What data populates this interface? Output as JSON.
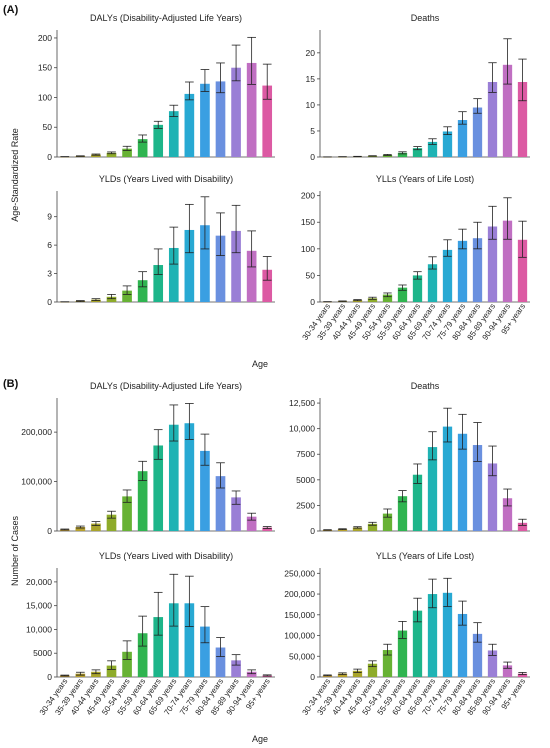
{
  "figure": {
    "panel_a_label": "(A)",
    "panel_b_label": "(B)",
    "panel_a_ylabel": "Age-Standardized Rate",
    "panel_b_ylabel": "Number of Cases",
    "xlabel": "Age"
  },
  "chart_data": [
    {
      "panel": "A",
      "type": "bar",
      "title": "DALYs (Disability-Adjusted Life Years)",
      "yticks": [
        0,
        50,
        100,
        150,
        200
      ],
      "yticklabels": [
        "0",
        "50",
        "100",
        "150",
        "200"
      ],
      "ylim": [
        0,
        210
      ],
      "show_xticklabels": false,
      "values": [
        0.5,
        1.5,
        4,
        7,
        14,
        30,
        54,
        77,
        106,
        123,
        127,
        150,
        158,
        120
      ],
      "lower": [
        0.3,
        1,
        3,
        5.5,
        11,
        25,
        48,
        68,
        96,
        110,
        108,
        128,
        122,
        97
      ],
      "upper": [
        0.7,
        2,
        5,
        8.5,
        18,
        37,
        60,
        87,
        126,
        147,
        158,
        188,
        201,
        156
      ]
    },
    {
      "panel": "A",
      "type": "bar",
      "title": "Deaths",
      "yticks": [
        0,
        5,
        10,
        15,
        20
      ],
      "yticklabels": [
        "0",
        "5",
        "10",
        "15",
        "20"
      ],
      "ylim": [
        0,
        24
      ],
      "show_xticklabels": false,
      "values": [
        0.02,
        0.05,
        0.1,
        0.2,
        0.4,
        0.8,
        1.7,
        2.9,
        4.9,
        7.1,
        9.5,
        14.4,
        17.7,
        14.4
      ],
      "lower": [
        0.01,
        0.03,
        0.07,
        0.15,
        0.3,
        0.6,
        1.4,
        2.4,
        4.3,
        6.3,
        8.4,
        12.4,
        14.0,
        10.8
      ],
      "upper": [
        0.03,
        0.07,
        0.13,
        0.25,
        0.5,
        1.0,
        2.0,
        3.5,
        5.8,
        8.7,
        11.2,
        18.1,
        22.7,
        18.8
      ]
    },
    {
      "panel": "A",
      "type": "bar",
      "title": "YLDs (Years Lived with Disability)",
      "yticks": [
        0,
        3,
        6,
        9
      ],
      "yticklabels": [
        "0",
        "3",
        "6",
        "9"
      ],
      "ylim": [
        0,
        11.5
      ],
      "show_xticklabels": false,
      "values": [
        0.02,
        0.1,
        0.25,
        0.55,
        1.2,
        2.3,
        3.9,
        5.7,
        7.6,
        8.1,
        7.0,
        7.5,
        5.4,
        3.4
      ],
      "lower": [
        0.01,
        0.05,
        0.15,
        0.35,
        0.8,
        1.6,
        2.9,
        4.0,
        5.2,
        5.6,
        4.9,
        5.2,
        3.7,
        2.3
      ],
      "upper": [
        0.03,
        0.15,
        0.35,
        0.8,
        1.7,
        3.2,
        5.6,
        7.9,
        10.3,
        11.1,
        9.4,
        10.2,
        7.5,
        4.8
      ]
    },
    {
      "panel": "A",
      "type": "bar",
      "title": "YLLs (Years of Life Lost)",
      "yticks": [
        0,
        50,
        100,
        150,
        200
      ],
      "yticklabels": [
        "0",
        "50",
        "100",
        "150",
        "200"
      ],
      "ylim": [
        0,
        205
      ],
      "show_xticklabels": true,
      "values": [
        0.5,
        1.5,
        3.5,
        7,
        14,
        27,
        50,
        71,
        98,
        115,
        120,
        142,
        153,
        117
      ],
      "lower": [
        0.3,
        1,
        2.5,
        5,
        10,
        22,
        43,
        62,
        86,
        100,
        100,
        118,
        118,
        84
      ],
      "upper": [
        0.7,
        2,
        4.5,
        9,
        17,
        32,
        57,
        85,
        117,
        137,
        150,
        180,
        196,
        152
      ]
    },
    {
      "panel": "B",
      "type": "bar",
      "title": "DALYs (Disability-Adjusted Life Years)",
      "yticks": [
        0,
        100000,
        200000
      ],
      "yticklabels": [
        "0",
        "100,000",
        "200,000"
      ],
      "ylim": [
        0,
        265000
      ],
      "show_xticklabels": false,
      "values": [
        3000,
        8000,
        15000,
        33000,
        70000,
        121000,
        173000,
        215000,
        218000,
        162000,
        111000,
        68000,
        29000,
        7000
      ],
      "lower": [
        2000,
        6000,
        11000,
        26000,
        58000,
        102000,
        145000,
        182000,
        185000,
        133000,
        87000,
        54000,
        22000,
        5000
      ],
      "upper": [
        4000,
        10000,
        19000,
        40000,
        83000,
        141000,
        205000,
        255000,
        258000,
        196000,
        138000,
        81000,
        36000,
        9000
      ]
    },
    {
      "panel": "B",
      "type": "bar",
      "title": "Deaths",
      "yticks": [
        0,
        2500,
        5000,
        7500,
        10000,
        12500
      ],
      "yticklabels": [
        "0",
        "2500",
        "5000",
        "7500",
        "10,000",
        "12,500"
      ],
      "ylim": [
        0,
        12800
      ],
      "show_xticklabels": false,
      "values": [
        100,
        180,
        350,
        700,
        1700,
        3400,
        5500,
        8200,
        10200,
        9500,
        8400,
        6600,
        3200,
        800
      ],
      "lower": [
        70,
        140,
        280,
        560,
        1350,
        2850,
        4650,
        6950,
        8700,
        8000,
        6800,
        5400,
        2450,
        550
      ],
      "upper": [
        130,
        220,
        420,
        850,
        2150,
        3950,
        6550,
        9700,
        12000,
        11400,
        10600,
        8300,
        4100,
        1150
      ]
    },
    {
      "panel": "B",
      "type": "bar",
      "title": "YLDs (Years Lived with Disability)",
      "yticks": [
        0,
        5000,
        10000,
        15000,
        20000
      ],
      "yticklabels": [
        "0",
        "5000",
        "10,000",
        "15,000",
        "20,000"
      ],
      "ylim": [
        0,
        22500
      ],
      "show_xticklabels": true,
      "values": [
        300,
        700,
        1100,
        2400,
        5300,
        9200,
        12600,
        15500,
        15500,
        10600,
        6200,
        3500,
        1100,
        300
      ],
      "lower": [
        200,
        400,
        700,
        1600,
        3700,
        6500,
        8800,
        10700,
        10600,
        7200,
        4300,
        2500,
        700,
        200
      ],
      "upper": [
        400,
        1000,
        1500,
        3400,
        7600,
        12800,
        17800,
        21600,
        21200,
        14800,
        8300,
        4700,
        1500,
        450
      ]
    },
    {
      "panel": "B",
      "type": "bar",
      "title": "YLLs (Years of Life Lost)",
      "yticks": [
        0,
        50000,
        100000,
        150000,
        200000,
        250000
      ],
      "yticklabels": [
        "0",
        "50,000",
        "100,000",
        "150,000",
        "200,000",
        "250,000"
      ],
      "ylim": [
        0,
        258000
      ],
      "show_xticklabels": true,
      "values": [
        4000,
        8000,
        15000,
        32000,
        65000,
        112000,
        160000,
        200000,
        203000,
        152000,
        104000,
        64000,
        28000,
        8000
      ],
      "lower": [
        3000,
        6000,
        11000,
        25000,
        53000,
        93000,
        133000,
        167000,
        170000,
        125000,
        84000,
        52000,
        21000,
        6000
      ],
      "upper": [
        5000,
        10000,
        19000,
        39000,
        79000,
        134000,
        190000,
        236000,
        238000,
        183000,
        131000,
        79000,
        36000,
        11000
      ]
    }
  ],
  "categories": [
    "30-34 years",
    "35-39 years",
    "40-44 years",
    "45-49 years",
    "50-54 years",
    "55-59 years",
    "60-64 years",
    "65-69 years",
    "70-74 years",
    "75-79 years",
    "80-84 years",
    "85-89 years",
    "90-94 years",
    "95+ years"
  ],
  "colors": [
    "#c39b34",
    "#b7a02c",
    "#a9a42a",
    "#8eab2a",
    "#67b234",
    "#2fb450",
    "#1db58a",
    "#1fb3b4",
    "#28a9d3",
    "#3a9fe2",
    "#6a90df",
    "#9a7fd6",
    "#c06fc2",
    "#dc5aa3"
  ]
}
